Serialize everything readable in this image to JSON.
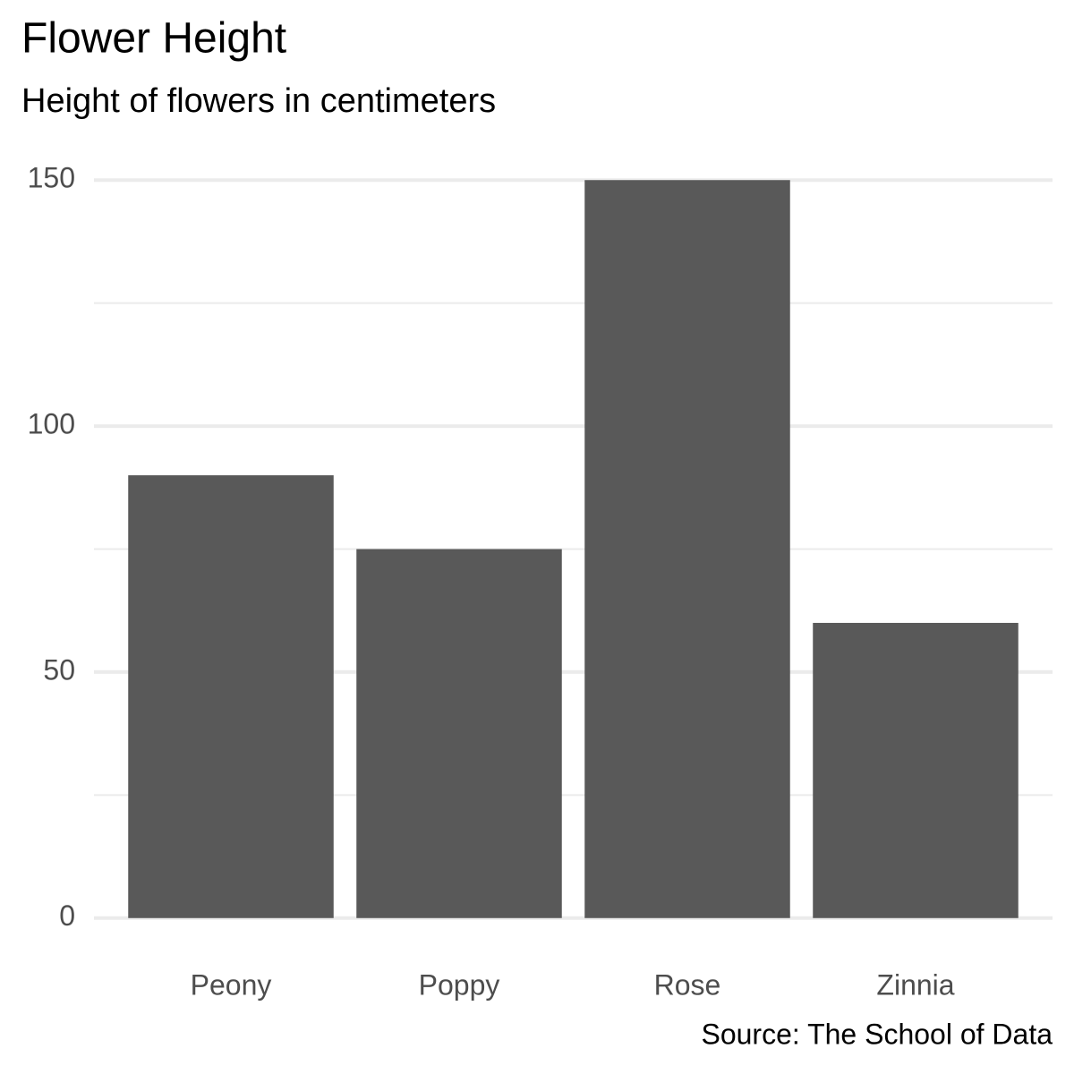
{
  "chart_data": {
    "type": "bar",
    "title": "Flower Height",
    "subtitle": "Height of flowers in centimeters",
    "caption": "Source: The School of Data",
    "categories": [
      "Peony",
      "Poppy",
      "Rose",
      "Zinnia"
    ],
    "values": [
      90,
      75,
      150,
      60
    ],
    "color": "#595959",
    "ylim": [
      -7.5,
      157.5
    ],
    "yticks": [
      0,
      50,
      100,
      150
    ],
    "minor_yticks": [
      25,
      75,
      125
    ],
    "grid": true
  }
}
